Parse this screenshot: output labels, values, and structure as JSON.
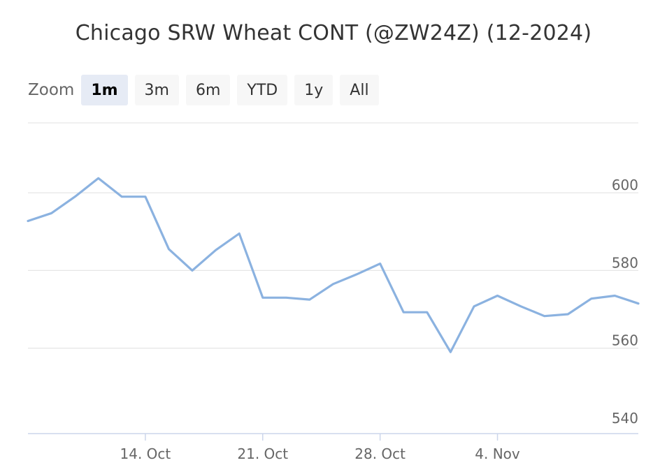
{
  "chart_data": {
    "type": "line",
    "title": "Chicago SRW Wheat CONT (@ZW24Z) (12-2024)",
    "xlabel": "",
    "ylabel": "",
    "ylim": [
      538,
      618
    ],
    "y_ticks": [
      540,
      560,
      580,
      600
    ],
    "x_ticks": [
      {
        "label": "14. Oct",
        "date": "2024-10-14"
      },
      {
        "label": "21. Oct",
        "date": "2024-10-21"
      },
      {
        "label": "28. Oct",
        "date": "2024-10-28"
      },
      {
        "label": "4. Nov",
        "date": "2024-11-04"
      }
    ],
    "grid": true,
    "line_color": "#8bb2e0",
    "series": [
      {
        "name": "",
        "points": [
          {
            "x": "2024-10-07",
            "y": 592.75
          },
          {
            "x": "2024-10-08",
            "y": 594.75
          },
          {
            "x": "2024-10-09",
            "y": 599.0
          },
          {
            "x": "2024-10-10",
            "y": 603.75
          },
          {
            "x": "2024-10-11",
            "y": 599.0
          },
          {
            "x": "2024-10-14",
            "y": 599.0
          },
          {
            "x": "2024-10-15",
            "y": 585.5
          },
          {
            "x": "2024-10-16",
            "y": 580.0
          },
          {
            "x": "2024-10-17",
            "y": 585.25
          },
          {
            "x": "2024-10-18",
            "y": 589.5
          },
          {
            "x": "2024-10-21",
            "y": 573.0
          },
          {
            "x": "2024-10-22",
            "y": 573.0
          },
          {
            "x": "2024-10-23",
            "y": 572.5
          },
          {
            "x": "2024-10-24",
            "y": 576.5
          },
          {
            "x": "2024-10-25",
            "y": 579.0
          },
          {
            "x": "2024-10-28",
            "y": 581.75
          },
          {
            "x": "2024-10-29",
            "y": 569.25
          },
          {
            "x": "2024-10-30",
            "y": 569.25
          },
          {
            "x": "2024-10-31",
            "y": 559.0
          },
          {
            "x": "2024-11-01",
            "y": 570.75
          },
          {
            "x": "2024-11-04",
            "y": 573.5
          },
          {
            "x": "2024-11-05",
            "y": 570.75
          },
          {
            "x": "2024-11-06",
            "y": 568.25
          },
          {
            "x": "2024-11-07",
            "y": 568.75
          },
          {
            "x": "2024-11-08",
            "y": 572.75
          },
          {
            "x": "2024-11-11",
            "y": 573.5
          },
          {
            "x": "2024-11-12",
            "y": 571.5
          }
        ]
      }
    ]
  },
  "zoom": {
    "label": "Zoom",
    "buttons": [
      "1m",
      "3m",
      "6m",
      "YTD",
      "1y",
      "All"
    ],
    "selected": "1m"
  }
}
